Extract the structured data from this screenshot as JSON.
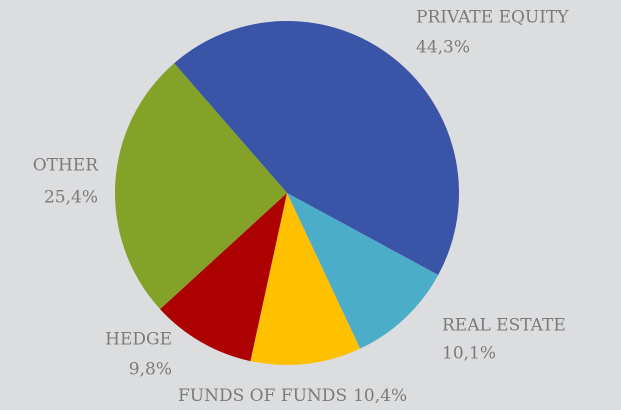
{
  "chart_data": {
    "type": "pie",
    "categories": [
      "PRIVATE EQUITY",
      "REAL ESTATE",
      "FUNDS OF FUNDS",
      "HEDGE",
      "OTHER"
    ],
    "values": [
      44.3,
      10.1,
      10.4,
      9.8,
      25.4
    ],
    "value_labels": [
      "44,3%",
      "10,1%",
      "10,4%",
      "9,8%",
      "25,4%"
    ],
    "colors": [
      "#3a55a7",
      "#4badc7",
      "#ffc000",
      "#ad0000",
      "#84a227"
    ]
  }
}
